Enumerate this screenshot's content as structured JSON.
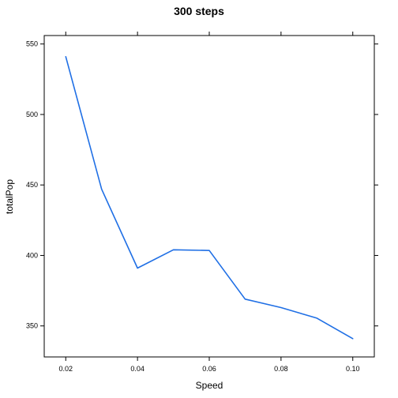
{
  "chart_data": {
    "type": "line",
    "title": "300 steps",
    "xlabel": "Speed",
    "ylabel": "totalPop",
    "xlim": [
      0.014,
      0.106
    ],
    "ylim": [
      328,
      556
    ],
    "xticks": [
      0.02,
      0.04,
      0.06,
      0.08,
      0.1
    ],
    "xtick_labels": [
      "0.02",
      "0.04",
      "0.06",
      "0.08",
      "0.10"
    ],
    "yticks": [
      350,
      400,
      450,
      500,
      550
    ],
    "ytick_labels": [
      "350",
      "400",
      "450",
      "500",
      "550"
    ],
    "grid": false,
    "legend": "none",
    "series": [
      {
        "color": "#1f6fe5",
        "x": [
          0.02,
          0.03,
          0.04,
          0.05,
          0.06,
          0.07,
          0.08,
          0.09,
          0.1
        ],
        "y": [
          541,
          447,
          391,
          404,
          403.5,
          369,
          363,
          355.5,
          341
        ]
      }
    ]
  }
}
